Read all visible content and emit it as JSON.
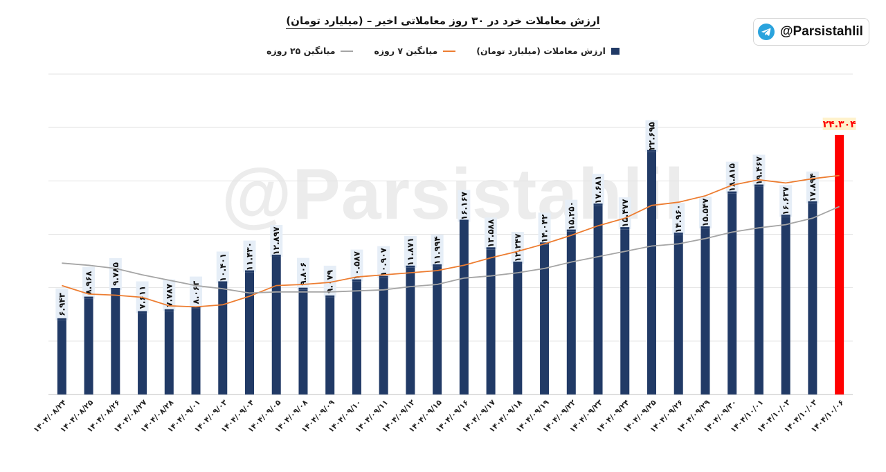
{
  "header": {
    "title": "ارزش معاملات خرد در ۳۰ روز معاملاتی اخیر – (میلیارد تومان)",
    "channel_handle": "@Parsistahlil",
    "channel_icon": "telegram-icon",
    "watermark_text": "@Parsistahlil"
  },
  "legend": {
    "bar": "ارزش معاملات (میلیارد تومان)",
    "ma7": "میانگین ۷ روزه",
    "ma25": "میانگین ۲۵ روزه"
  },
  "colors": {
    "bar": "#213a66",
    "bar_highlight": "#ff0000",
    "ma7": "#ed7d31",
    "ma25": "#a5a5a5",
    "label_bg": "#e6eef7",
    "highlight_label_bg": "#fff2cc"
  },
  "chart_data": {
    "type": "bar",
    "categories": [
      "۱۴۰۴/۰۸/۲۴",
      "۱۴۰۴/۰۸/۲۵",
      "۱۴۰۴/۰۸/۲۶",
      "۱۴۰۴/۰۸/۲۷",
      "۱۴۰۴/۰۸/۲۸",
      "۱۴۰۴/۰۹/۰۱",
      "۱۴۰۴/۰۹/۰۳",
      "۱۴۰۴/۰۹/۰۴",
      "۱۴۰۴/۰۹/۰۵",
      "۱۴۰۴/۰۹/۰۸",
      "۱۴۰۴/۰۹/۰۹",
      "۱۴۰۴/۰۹/۱۰",
      "۱۴۰۴/۰۹/۱۱",
      "۱۴۰۴/۰۹/۱۲",
      "۱۴۰۴/۰۹/۱۵",
      "۱۴۰۴/۰۹/۱۶",
      "۱۴۰۴/۰۹/۱۷",
      "۱۴۰۴/۰۹/۱۸",
      "۱۴۰۴/۰۹/۱۹",
      "۱۴۰۴/۰۹/۲۲",
      "۱۴۰۴/۰۹/۲۳",
      "۱۴۰۴/۰۹/۲۴",
      "۱۴۰۴/۰۹/۲۵",
      "۱۴۰۴/۰۹/۲۶",
      "۱۴۰۴/۰۹/۲۹",
      "۱۴۰۴/۰۹/۳۰",
      "۱۴۰۴/۱۰/۰۱",
      "۱۴۰۴/۱۰/۰۲",
      "۱۴۰۴/۱۰/۰۳",
      "۱۴۰۴/۱۰/۰۶"
    ],
    "values": [
      6.943,
      8.968,
      9.785,
      7.611,
      7.787,
      8.063,
      10.401,
      11.43,
      12.897,
      9.806,
      9.079,
      10.587,
      10.907,
      11.871,
      11.994,
      16.167,
      13.588,
      12.247,
      14.042,
      15.25,
      17.681,
      15.477,
      22.695,
      14.96,
      15.547,
      18.815,
      19.467,
      16.637,
      17.894,
      24.304
    ],
    "value_labels": [
      "۶.۹۴۳",
      "۸.۹۶۸",
      "۹.۷۸۵",
      "۷.۶۱۱",
      "۷.۷۸۷",
      "۸.۰۶۳",
      "۱۰.۴۰۱",
      "۱۱.۴۳۰",
      "۱۲.۸۹۷",
      "۹.۸۰۶",
      "۹.۰۷۹",
      "۱۰.۵۸۷",
      "۱۰.۹۰۷",
      "۱۱.۸۷۱",
      "۱۱.۹۹۴",
      "۱۶.۱۶۷",
      "۱۳.۵۸۸",
      "۱۲.۲۴۷",
      "۱۴.۰۴۲",
      "۱۵.۲۵۰",
      "۱۷.۶۸۱",
      "۱۵.۴۷۷",
      "۲۲.۶۹۵",
      "۱۴.۹۶۰",
      "۱۵.۵۴۷",
      "۱۸.۸۱۵",
      "۱۹.۴۶۷",
      "۱۶.۶۳۷",
      "۱۷.۸۹۴",
      "۲۴.۳۰۴"
    ],
    "highlight_index": 29,
    "series": [
      {
        "name": "میانگین ۷ روزه",
        "type": "line",
        "values": [
          10.2,
          9.4,
          9.3,
          9.1,
          8.3,
          8.2,
          8.4,
          9.2,
          10.2,
          10.3,
          10.5,
          11.0,
          11.2,
          11.4,
          11.6,
          12.1,
          12.8,
          13.4,
          14.1,
          14.9,
          15.8,
          16.5,
          17.7,
          18.0,
          18.6,
          19.6,
          20.1,
          19.8,
          20.2,
          20.5
        ]
      },
      {
        "name": "میانگین ۲۵ روزه",
        "type": "line",
        "values": [
          12.3,
          12.1,
          11.8,
          11.2,
          10.7,
          10.2,
          9.9,
          9.5,
          9.6,
          9.6,
          9.6,
          9.7,
          9.8,
          10.1,
          10.3,
          10.9,
          11.1,
          11.4,
          11.8,
          12.4,
          12.9,
          13.4,
          13.9,
          14.1,
          14.6,
          15.2,
          15.6,
          15.9,
          16.5,
          17.6
        ]
      }
    ],
    "ylim": [
      0,
      30
    ],
    "grid": true,
    "legend_position": "top",
    "xlabel": "",
    "ylabel": ""
  }
}
